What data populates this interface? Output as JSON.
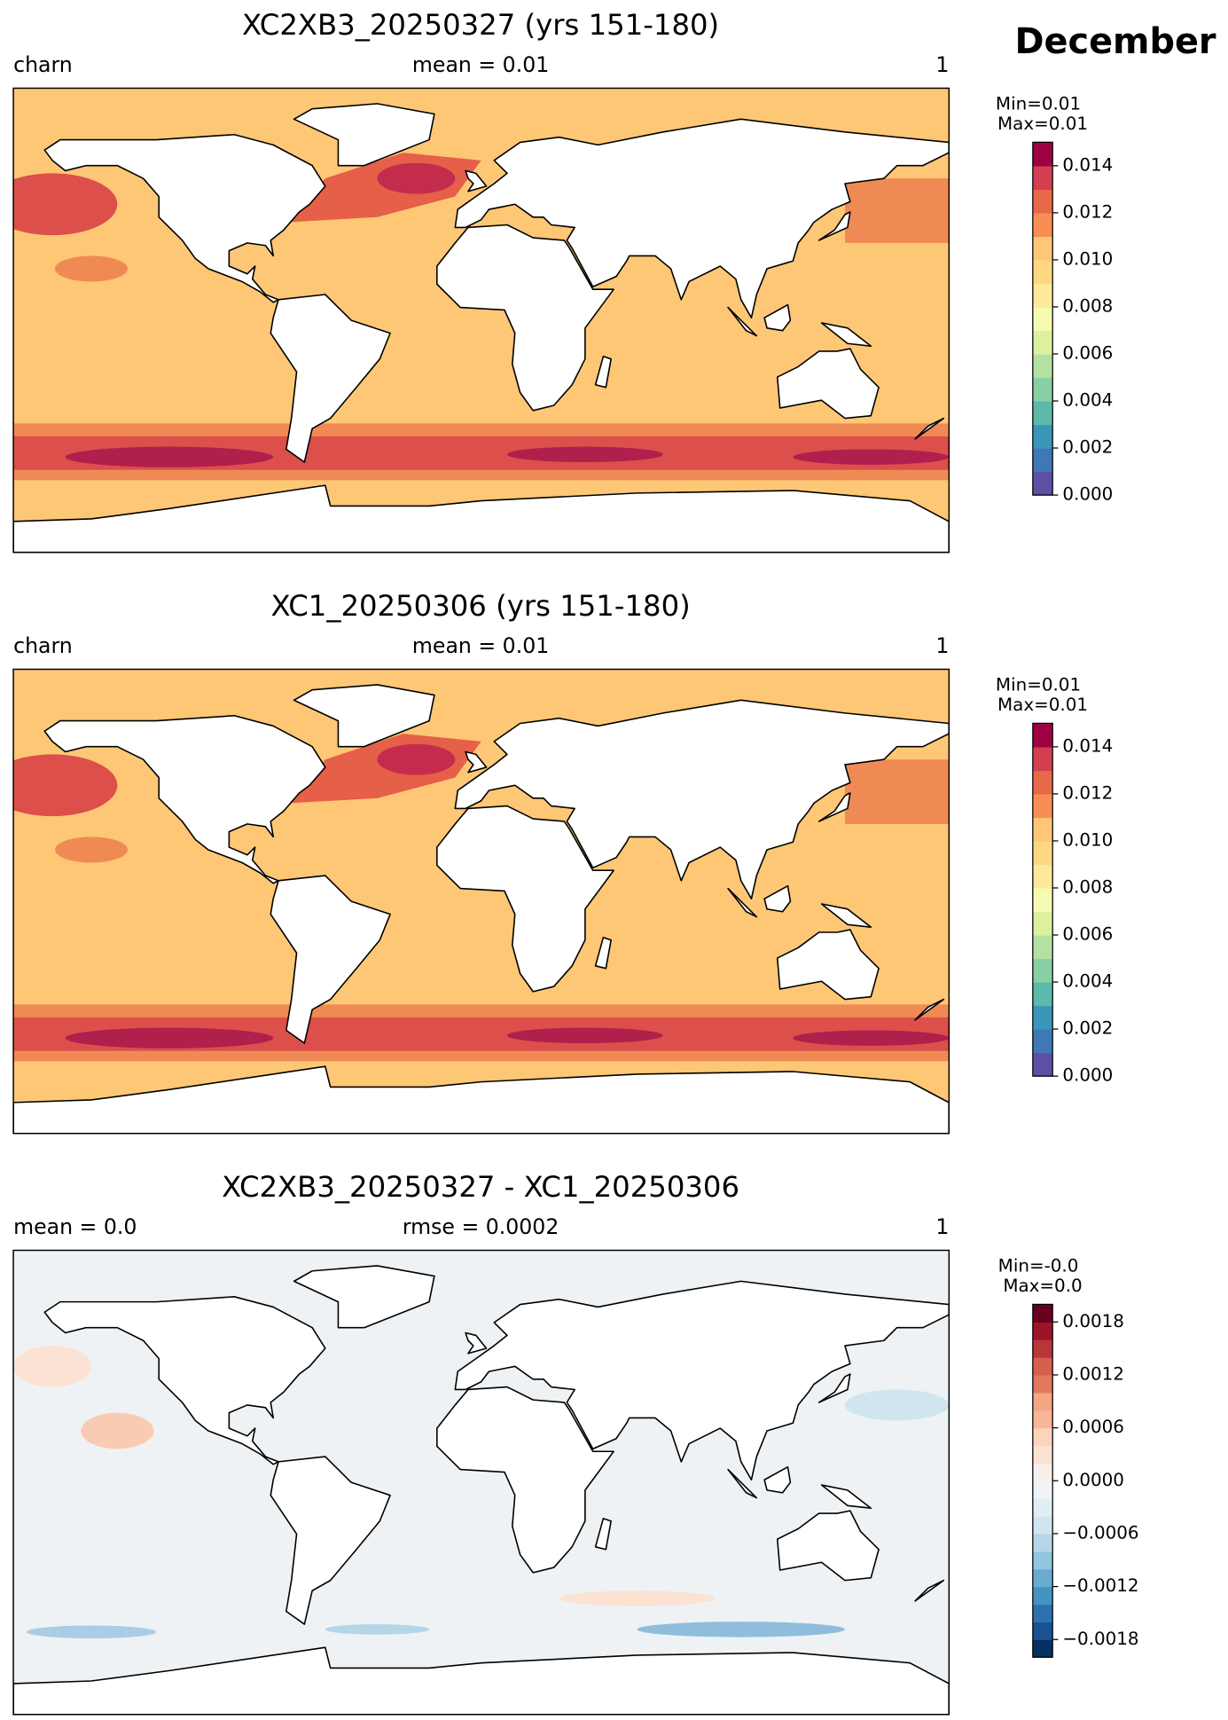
{
  "figure_title": "December",
  "chart_data": [
    {
      "type": "map",
      "title": "XC2XB3_20250327 (yrs 151-180)",
      "left_label": "charn",
      "center_label": "mean = 0.01",
      "right_label": "1",
      "min_label": "Min=0.01",
      "max_label": "Max=0.01",
      "colorbar": {
        "lim": [
          0,
          0.015
        ],
        "ticks": [
          {
            "value": 0,
            "label": "0.000"
          },
          {
            "value": 0.002,
            "label": "0.002"
          },
          {
            "value": 0.004,
            "label": "0.004"
          },
          {
            "value": 0.006,
            "label": "0.006"
          },
          {
            "value": 0.008,
            "label": "0.008"
          },
          {
            "value": 0.01,
            "label": "0.010"
          },
          {
            "value": 0.012,
            "label": "0.012"
          },
          {
            "value": 0.014,
            "label": "0.014"
          }
        ],
        "colors": [
          "#5e4fa2",
          "#3f78b4",
          "#3a96b9",
          "#5db9a9",
          "#88cfa4",
          "#b4e0a2",
          "#dcf0a0",
          "#f6fbb2",
          "#fee99a",
          "#fed880",
          "#fdc775",
          "#f88e53",
          "#e86949",
          "#d23f50",
          "#9e0142"
        ]
      }
    },
    {
      "type": "map",
      "title": "XC1_20250306 (yrs 151-180)",
      "left_label": "charn",
      "center_label": "mean = 0.01",
      "right_label": "1",
      "min_label": "Min=0.01",
      "max_label": "Max=0.01",
      "colorbar": {
        "lim": [
          0,
          0.015
        ],
        "ticks": [
          {
            "value": 0,
            "label": "0.000"
          },
          {
            "value": 0.002,
            "label": "0.002"
          },
          {
            "value": 0.004,
            "label": "0.004"
          },
          {
            "value": 0.006,
            "label": "0.006"
          },
          {
            "value": 0.008,
            "label": "0.008"
          },
          {
            "value": 0.01,
            "label": "0.010"
          },
          {
            "value": 0.012,
            "label": "0.012"
          },
          {
            "value": 0.014,
            "label": "0.014"
          }
        ],
        "colors": [
          "#5e4fa2",
          "#3f78b4",
          "#3a96b9",
          "#5db9a9",
          "#88cfa4",
          "#b4e0a2",
          "#dcf0a0",
          "#f6fbb2",
          "#fee99a",
          "#fed880",
          "#fdc775",
          "#f88e53",
          "#e86949",
          "#d23f50",
          "#9e0142"
        ]
      }
    },
    {
      "type": "map",
      "title": "XC2XB3_20250327 - XC1_20250306",
      "left_label": "mean = 0.0",
      "center_label": "rmse = 0.0002",
      "right_label": "1",
      "min_label": "Min=-0.0",
      "max_label": "Max=0.0",
      "colorbar": {
        "lim": [
          -0.002,
          0.002
        ],
        "ticks": [
          {
            "value": -0.0018,
            "label": "−0.0018"
          },
          {
            "value": -0.0012,
            "label": "−0.0012"
          },
          {
            "value": -0.0006,
            "label": "−0.0006"
          },
          {
            "value": 0,
            "label": "0.0000"
          },
          {
            "value": 0.0006,
            "label": "0.0006"
          },
          {
            "value": 0.0012,
            "label": "0.0012"
          },
          {
            "value": 0.0018,
            "label": "0.0018"
          }
        ],
        "colors": [
          "#053061",
          "#1a5291",
          "#2c72b0",
          "#4393c3",
          "#6aaccf",
          "#92c5de",
          "#b4d6e8",
          "#d1e5f0",
          "#e2eef5",
          "#f0f4f6",
          "#f8efea",
          "#fbe2d3",
          "#fdd3bb",
          "#f8b597",
          "#f4a582",
          "#e0795f",
          "#d6604d",
          "#b9363b",
          "#9a1529",
          "#67001f"
        ]
      }
    }
  ]
}
